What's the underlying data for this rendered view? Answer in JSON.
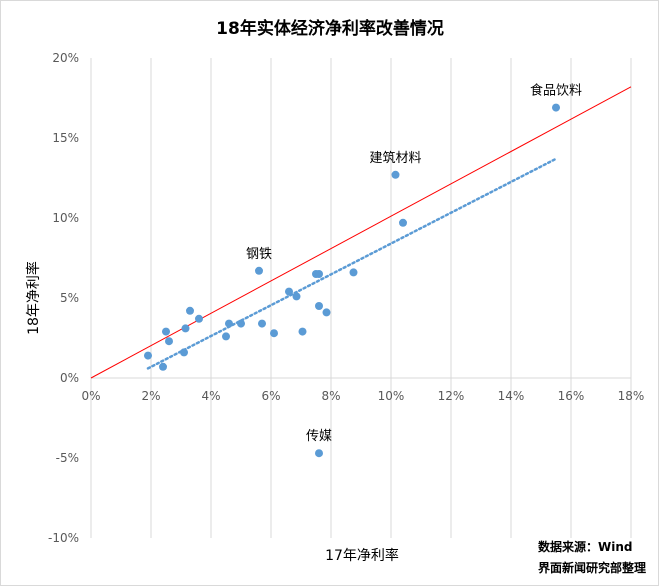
{
  "chart_data": {
    "type": "scatter",
    "title": "18年实体经济净利率改善情况",
    "xlabel": "17年净利率",
    "ylabel": "18年净利率",
    "xlim": [
      0,
      18
    ],
    "ylim": [
      -10,
      20
    ],
    "x_ticks": [
      "0%",
      "2%",
      "4%",
      "6%",
      "8%",
      "10%",
      "12%",
      "14%",
      "16%",
      "18%"
    ],
    "y_ticks": [
      "20%",
      "15%",
      "10%",
      "5%",
      "0%",
      "-5%",
      "-10%"
    ],
    "grid": "vertical",
    "colors": {
      "points": "#5b9bd5",
      "diagonal": "#ff0000",
      "trend": "#5b9bd5"
    },
    "points": [
      {
        "x": 1.9,
        "y": 1.4
      },
      {
        "x": 2.4,
        "y": 0.7
      },
      {
        "x": 2.5,
        "y": 2.9
      },
      {
        "x": 2.6,
        "y": 2.3
      },
      {
        "x": 3.1,
        "y": 1.6
      },
      {
        "x": 3.15,
        "y": 3.1
      },
      {
        "x": 3.3,
        "y": 4.2
      },
      {
        "x": 3.6,
        "y": 3.7
      },
      {
        "x": 4.5,
        "y": 2.6
      },
      {
        "x": 4.6,
        "y": 3.4
      },
      {
        "x": 5.0,
        "y": 3.4
      },
      {
        "x": 5.6,
        "y": 6.7
      },
      {
        "x": 5.7,
        "y": 3.4
      },
      {
        "x": 6.1,
        "y": 2.8
      },
      {
        "x": 6.6,
        "y": 5.4
      },
      {
        "x": 6.85,
        "y": 5.1
      },
      {
        "x": 7.05,
        "y": 2.9
      },
      {
        "x": 7.5,
        "y": 6.5
      },
      {
        "x": 7.6,
        "y": 6.5
      },
      {
        "x": 7.6,
        "y": 4.5
      },
      {
        "x": 7.6,
        "y": -4.7
      },
      {
        "x": 7.85,
        "y": 4.1
      },
      {
        "x": 8.75,
        "y": 6.6
      },
      {
        "x": 10.15,
        "y": 12.7
      },
      {
        "x": 10.4,
        "y": 9.7
      },
      {
        "x": 15.5,
        "y": 16.9
      }
    ],
    "diagonal": [
      [
        0,
        0
      ],
      [
        18,
        18.2
      ]
    ],
    "trendline": [
      [
        1.9,
        0.6
      ],
      [
        15.5,
        13.7
      ]
    ],
    "annotations": [
      {
        "text": "食品饮料",
        "x": 15.5,
        "y": 16.9
      },
      {
        "text": "建筑材料",
        "x": 10.15,
        "y": 12.7
      },
      {
        "text": "钢铁",
        "x": 5.6,
        "y": 6.7
      },
      {
        "text": "传媒",
        "x": 7.6,
        "y": -4.7
      }
    ]
  },
  "source_lines": [
    "数据来源：Wind",
    "界面新闻研究部整理"
  ]
}
